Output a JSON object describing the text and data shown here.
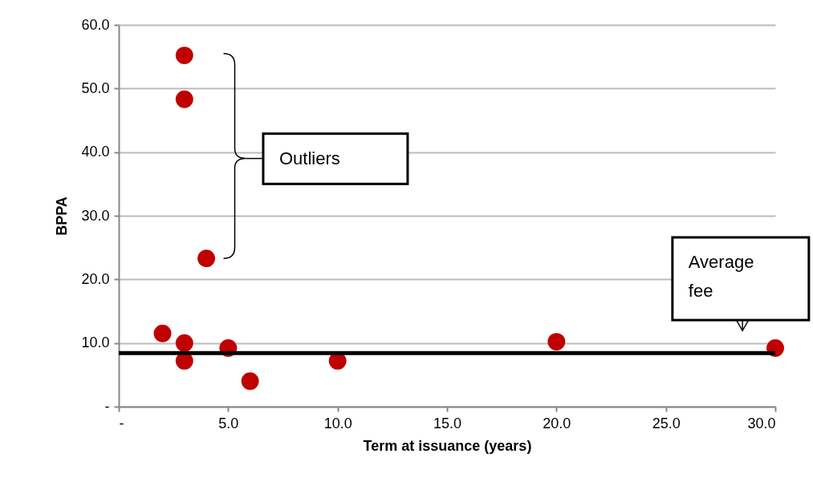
{
  "chart_data": {
    "type": "scatter",
    "xlabel": "Term at issuance (years)",
    "ylabel": "BPPA",
    "x": [
      3,
      3,
      4,
      2,
      3,
      3,
      5,
      6,
      10,
      20,
      30
    ],
    "values": [
      55.2,
      48.3,
      23.3,
      11.5,
      10.0,
      7.2,
      9.2,
      4.0,
      7.2,
      10.2,
      9.2
    ],
    "color": "#c00000",
    "marker": "circle",
    "xlim": [
      0,
      30
    ],
    "xticks": [
      {
        "value": 0,
        "label": "-"
      },
      {
        "value": 5,
        "label": "5.0"
      },
      {
        "value": 10,
        "label": "10.0"
      },
      {
        "value": 15,
        "label": "15.0"
      },
      {
        "value": 20,
        "label": "20.0"
      },
      {
        "value": 25,
        "label": "25.0"
      },
      {
        "value": 30,
        "label": "30.0"
      }
    ],
    "ylim": [
      0,
      60
    ],
    "yticks": [
      {
        "value": 0,
        "label": "-"
      },
      {
        "value": 10,
        "label": "10.0"
      },
      {
        "value": 20,
        "label": "20.0"
      },
      {
        "value": 30,
        "label": "30.0"
      },
      {
        "value": 40,
        "label": "40.0"
      },
      {
        "value": 50,
        "label": "50.0"
      },
      {
        "value": 60,
        "label": "60.0"
      }
    ],
    "grid": "y",
    "ref_lines": [
      {
        "axis": "y",
        "value": 8.4,
        "label": "Average fee",
        "color": "#000000"
      }
    ],
    "annotations": [
      "Outliers"
    ]
  }
}
